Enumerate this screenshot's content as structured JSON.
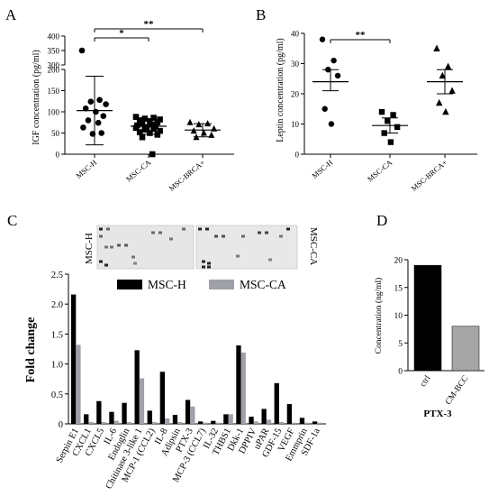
{
  "panels": [
    {
      "letter": "A"
    },
    {
      "letter": "B"
    },
    {
      "letter": "C"
    },
    {
      "letter": "D"
    }
  ],
  "chart_data": [
    {
      "panel": "A",
      "type": "scatter",
      "ylabel": "IGF concentration (pg/ml)",
      "categories": [
        "MSC-H",
        "MSC-CA",
        "MSC-BRCA+"
      ],
      "broken_axis": {
        "lower": [
          0,
          200
        ],
        "upper": [
          300,
          400
        ]
      },
      "yticks_lower": [
        "0",
        "50",
        "100",
        "150",
        "200"
      ],
      "yticks_upper": [
        "300",
        "350",
        "400"
      ],
      "markers": [
        "circle",
        "square",
        "triangle"
      ],
      "groups": [
        {
          "name": "MSC-H",
          "mean": 103,
          "sd_low": 22,
          "sd_high": 184,
          "values": [
            350,
            128,
            124,
            118,
            108,
            100,
            90,
            80,
            74,
            63,
            50,
            48
          ]
        },
        {
          "name": "MSC-CA",
          "mean": 66,
          "sd_low": 47,
          "sd_high": 82,
          "values": [
            88,
            86,
            84,
            82,
            80,
            78,
            75,
            72,
            70,
            68,
            66,
            64,
            62,
            60,
            58,
            55,
            52,
            50,
            46,
            40,
            0
          ]
        },
        {
          "name": "MSC-BRCA+",
          "mean": 57,
          "sd_low": 41,
          "sd_high": 72,
          "values": [
            75,
            72,
            70,
            60,
            55,
            50,
            45,
            40
          ]
        }
      ],
      "significance": [
        {
          "from": 0,
          "to": 1,
          "label": "*"
        },
        {
          "from": 0,
          "to": 2,
          "label": "**"
        }
      ]
    },
    {
      "panel": "B",
      "type": "scatter",
      "ylabel": "Leptin concentration (pg/ml)",
      "ylim": [
        0,
        40
      ],
      "yticks": [
        "0",
        "10",
        "20",
        "30",
        "40"
      ],
      "categories": [
        "MSC-H",
        "MSC-CA",
        "MSC-BRCA+"
      ],
      "markers": [
        "circle",
        "square",
        "triangle"
      ],
      "groups": [
        {
          "name": "MSC-H",
          "mean": 24,
          "sd_low": 21,
          "sd_high": 28,
          "values": [
            38,
            31,
            28,
            26,
            15,
            10
          ]
        },
        {
          "name": "MSC-CA",
          "mean": 9.5,
          "sd_low": 7,
          "sd_high": 12,
          "values": [
            14,
            13,
            11,
            9,
            7,
            4
          ]
        },
        {
          "name": "MSC-BRCA+",
          "mean": 24,
          "sd_low": 20,
          "sd_high": 28,
          "values": [
            35,
            29,
            26,
            21,
            17,
            14
          ]
        }
      ],
      "significance": [
        {
          "from": 0,
          "to": 1,
          "label": "**"
        }
      ]
    },
    {
      "panel": "C",
      "type": "bar",
      "ylabel": "Fold change",
      "ylim": [
        0,
        2.5
      ],
      "yticks": [
        "0",
        "0.5",
        "1.0",
        "1.5",
        "2.0",
        "2.5"
      ],
      "blot_labels": [
        "MSC-H",
        "MSC-CA"
      ],
      "legend": {
        "position": "top"
      },
      "categories": [
        "Serpin E1",
        "CXCL1",
        "CXCL5",
        "IL-6",
        "Endoglin",
        "Chitinase 3-like 1",
        "MCP-1 (CCL2)",
        "IL-8",
        "Adipsin",
        "PTX-3",
        "MCP-3 (CCL7)",
        "IL-32",
        "THBS1",
        "Dkk-1",
        "DPPIV",
        "uPAR",
        "GDF-15",
        "VEGF",
        "Emmprin",
        "SDF-1a"
      ],
      "series": [
        {
          "name": "MSC-H",
          "color": "#000000",
          "values": [
            2.16,
            0.16,
            0.38,
            0.2,
            0.35,
            1.23,
            0.22,
            0.87,
            0.15,
            0.4,
            0.04,
            0.05,
            0.16,
            1.31,
            0.12,
            0.25,
            0.68,
            0.33,
            0.1,
            0.04
          ]
        },
        {
          "name": "MSC-CA",
          "color": "#a0a0a8",
          "values": [
            1.32,
            0.03,
            0.03,
            0.05,
            0.03,
            0.76,
            0.03,
            0.09,
            0.03,
            0.29,
            0.02,
            0.02,
            0.16,
            1.19,
            0.04,
            0.07,
            0.03,
            0.02,
            0.02,
            0.02
          ]
        }
      ]
    },
    {
      "panel": "D",
      "type": "bar",
      "ylabel": "Concentration (ng/ml)",
      "xlabel": "PTX-3",
      "ylim": [
        0,
        20
      ],
      "yticks": [
        "0",
        "5",
        "10",
        "15",
        "20"
      ],
      "categories": [
        "ctrl",
        "CM-BCC"
      ],
      "values": [
        19,
        8
      ],
      "colors": [
        "#000000",
        "#a6a6a6"
      ]
    }
  ]
}
